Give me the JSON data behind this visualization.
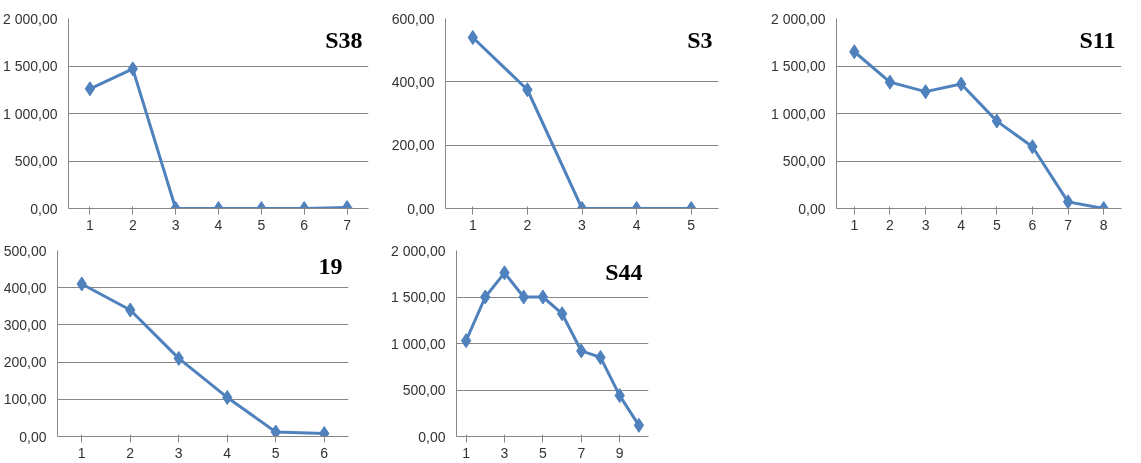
{
  "chart_data": [
    {
      "type": "line",
      "title": "S38",
      "categories": [
        "1",
        "2",
        "3",
        "4",
        "5",
        "6",
        "7"
      ],
      "values": [
        1260,
        1470,
        0,
        0,
        0,
        0,
        10
      ],
      "color": "#4f81bd",
      "marker": "diamond",
      "grid": "y",
      "ylim": [
        0,
        2000
      ],
      "yticks": [
        {
          "value": 0,
          "label": "0,00"
        },
        {
          "value": 500,
          "label": "500,00"
        },
        {
          "value": 1000,
          "label": "1 000,00"
        },
        {
          "value": 1500,
          "label": "1 500,00"
        },
        {
          "value": 2000,
          "label": "2 000,00"
        }
      ]
    },
    {
      "type": "line",
      "title": "S3",
      "categories": [
        "1",
        "2",
        "3",
        "4",
        "5"
      ],
      "values": [
        540,
        375,
        0,
        0,
        0
      ],
      "color": "#4f81bd",
      "marker": "diamond",
      "grid": "y",
      "ylim": [
        0,
        600
      ],
      "yticks": [
        {
          "value": 0,
          "label": "0,00"
        },
        {
          "value": 200,
          "label": "200,00"
        },
        {
          "value": 400,
          "label": "400,00"
        },
        {
          "value": 600,
          "label": "600,00"
        }
      ]
    },
    {
      "type": "line",
      "title": "S11",
      "categories": [
        "1",
        "2",
        "3",
        "4",
        "5",
        "6",
        "7",
        "8"
      ],
      "values": [
        1650,
        1330,
        1230,
        1310,
        920,
        650,
        70,
        0
      ],
      "color": "#4f81bd",
      "marker": "diamond",
      "grid": "y",
      "ylim": [
        0,
        2000
      ],
      "yticks": [
        {
          "value": 0,
          "label": "0,00"
        },
        {
          "value": 500,
          "label": "500,00"
        },
        {
          "value": 1000,
          "label": "1 000,00"
        },
        {
          "value": 1500,
          "label": "1 500,00"
        },
        {
          "value": 2000,
          "label": "2 000,00"
        }
      ]
    },
    {
      "type": "line",
      "title": "19",
      "categories": [
        "1",
        "2",
        "3",
        "4",
        "5",
        "6"
      ],
      "values": [
        410,
        340,
        210,
        105,
        12,
        8
      ],
      "color": "#4f81bd",
      "marker": "diamond",
      "grid": "y",
      "ylim": [
        0,
        500
      ],
      "yticks": [
        {
          "value": 0,
          "label": "0,00"
        },
        {
          "value": 100,
          "label": "100,00"
        },
        {
          "value": 200,
          "label": "200,00"
        },
        {
          "value": 300,
          "label": "300,00"
        },
        {
          "value": 400,
          "label": "400,00"
        },
        {
          "value": 500,
          "label": "500,00"
        }
      ]
    },
    {
      "type": "line",
      "title": "S44",
      "categories": [
        "1",
        null,
        "3",
        null,
        "5",
        null,
        "7",
        null,
        "9",
        null
      ],
      "values": [
        1030,
        1500,
        1760,
        1500,
        1500,
        1320,
        920,
        850,
        440,
        120
      ],
      "color": "#4f81bd",
      "marker": "diamond",
      "grid": "y",
      "ylim": [
        0,
        2000
      ],
      "yticks": [
        {
          "value": 0,
          "label": "0,00"
        },
        {
          "value": 500,
          "label": "500,00"
        },
        {
          "value": 1000,
          "label": "1 000,00"
        },
        {
          "value": 1500,
          "label": "1 500,00"
        },
        {
          "value": 2000,
          "label": "2 000,00"
        }
      ]
    }
  ]
}
